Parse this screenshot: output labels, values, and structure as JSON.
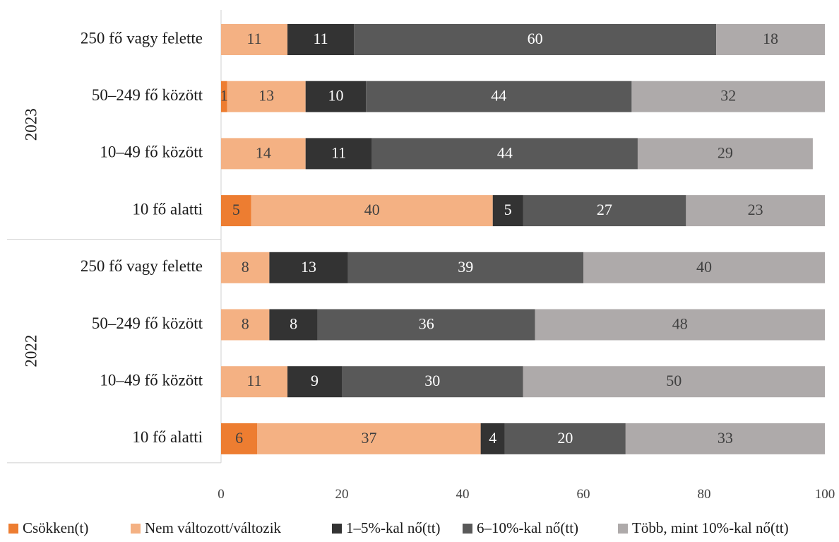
{
  "chart_data": {
    "type": "bar",
    "orientation": "horizontal",
    "stacked": true,
    "title": "",
    "xlabel": "",
    "ylabel": "",
    "xlim": [
      0,
      100
    ],
    "x_ticks": [
      0,
      20,
      40,
      60,
      80,
      100
    ],
    "grid": false,
    "legend_position": "bottom",
    "groups": [
      {
        "name": "2023",
        "categories": [
          "250 fő vagy felette",
          "50–249 fő között",
          "10–49 fő között",
          "10 fő alatti"
        ]
      },
      {
        "name": "2022",
        "categories": [
          "250 fő vagy felette",
          "50–249 fő között",
          "10–49 fő között",
          "10 fő alatti"
        ]
      }
    ],
    "series": [
      {
        "name": "Csökken(t)",
        "color": "#ED7D31",
        "label_color": "#404040",
        "values": [
          0,
          1,
          0,
          5,
          0,
          0,
          0,
          6
        ]
      },
      {
        "name": "Nem változott/változik",
        "color": "#F4B183",
        "label_color": "#404040",
        "values": [
          11,
          13,
          14,
          40,
          8,
          8,
          11,
          37
        ]
      },
      {
        "name": "1–5%-kal nő(tt)",
        "color": "#333333",
        "label_color": "#FFFFFF",
        "values": [
          11,
          10,
          11,
          5,
          13,
          8,
          9,
          4
        ]
      },
      {
        "name": "6–10%-kal nő(tt)",
        "color": "#595959",
        "label_color": "#FFFFFF",
        "values": [
          60,
          44,
          44,
          27,
          39,
          36,
          30,
          20
        ]
      },
      {
        "name": "Több, mint 10%-kal nő(tt)",
        "color": "#AEAAAA",
        "label_color": "#404040",
        "values": [
          18,
          32,
          29,
          23,
          40,
          48,
          50,
          33
        ]
      }
    ]
  }
}
